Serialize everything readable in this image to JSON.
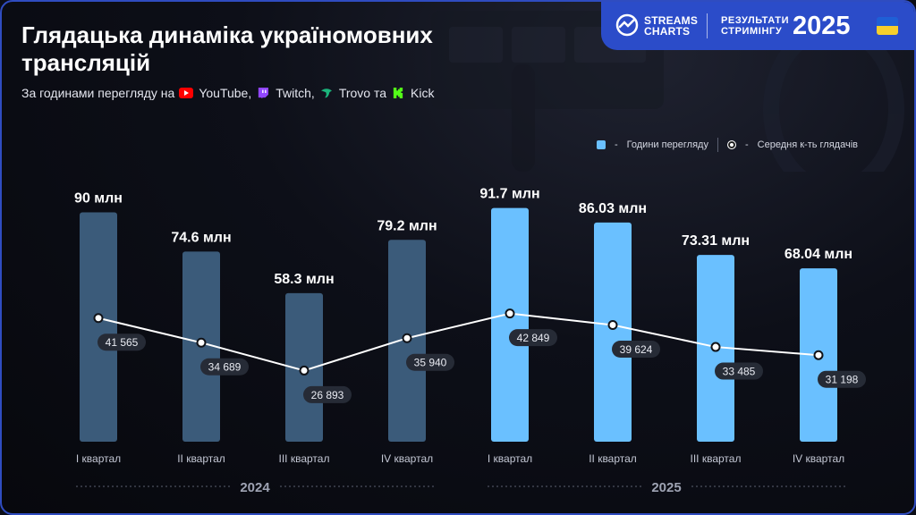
{
  "title": "Глядацька динаміка україномовних трансляцій",
  "subtitle": {
    "prefix": "За годинами перегляду на",
    "platforms": [
      {
        "name": "YouTube,",
        "icon": "youtube-icon",
        "color": "#ff0000"
      },
      {
        "name": "Twitch,",
        "icon": "twitch-icon",
        "color": "#9146ff"
      },
      {
        "name": "Trovo та",
        "icon": "trovo-icon",
        "color": "#1bb47b"
      },
      {
        "name": "Kick",
        "icon": "kick-icon",
        "color": "#53fc18"
      }
    ]
  },
  "brand": {
    "name_line1": "STREAMS",
    "name_line2": "CHARTS",
    "results_line1": "РЕЗУЛЬТАТИ",
    "results_line2": "СТРИМІНГУ",
    "year": "2025"
  },
  "legend": {
    "bars": "Години перегляду",
    "line": "Середня к-ть глядачів",
    "dash": "-"
  },
  "colors": {
    "bar_2024": "#3b5b7a",
    "bar_2025": "#6ac0ff",
    "line": "#ffffff",
    "accent": "#2b4cc9",
    "label_pill": "#262b36"
  },
  "chart_data": {
    "type": "bar",
    "categories": [
      "I квартал",
      "II квартал",
      "III квартал",
      "IV квартал",
      "I квартал",
      "II квартал",
      "III квартал",
      "IV квартал"
    ],
    "groups": [
      {
        "label": "2024",
        "from": 0,
        "to": 3
      },
      {
        "label": "2025",
        "from": 4,
        "to": 7
      }
    ],
    "series": [
      {
        "name": "Години перегляду",
        "type": "bar",
        "values": [
          90,
          74.6,
          58.3,
          79.2,
          91.7,
          86.03,
          73.31,
          68.04
        ],
        "labels": [
          "90 млн",
          "74.6 млн",
          "58.3 млн",
          "79.2 млн",
          "91.7 млн",
          "86.03 млн",
          "73.31 млн",
          "68.04 млн"
        ]
      },
      {
        "name": "Середня к-ть глядачів",
        "type": "line",
        "values": [
          41565,
          34689,
          26893,
          35940,
          42849,
          39624,
          33485,
          31198
        ],
        "labels": [
          "41 565",
          "34 689",
          "26 893",
          "35 940",
          "42 849",
          "39 624",
          "33 485",
          "31 198"
        ]
      }
    ],
    "ylim": [
      0,
      100
    ],
    "line_ylim": [
      0,
      90000
    ],
    "grid": false,
    "legend_position": "top-right"
  }
}
